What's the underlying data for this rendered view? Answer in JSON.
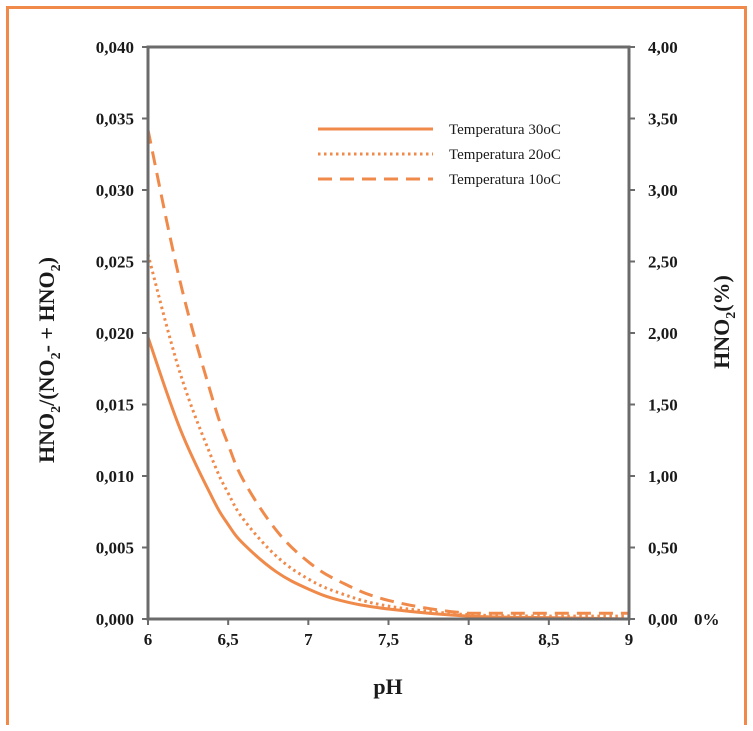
{
  "chart_data": {
    "type": "line",
    "xlabel": "pH",
    "ylabel": "HNO₂/(NO₂- + HNO₂)",
    "y2label": "HNO₂(%)",
    "y2_unit_label": "0%",
    "xlim": [
      6,
      9
    ],
    "ylim": [
      0,
      0.04
    ],
    "y2lim": [
      0,
      4
    ],
    "x_ticks": [
      "6",
      "6,5",
      "7",
      "7,5",
      "8",
      "8,5",
      "9"
    ],
    "y_ticks": [
      "0,000",
      "0,005",
      "0,010",
      "0,015",
      "0,020",
      "0,025",
      "0,030",
      "0,035",
      "0,040"
    ],
    "y2_ticks": [
      "0,00",
      "0,50",
      "1,00",
      "1,50",
      "2,00",
      "2,50",
      "3,00",
      "3,50",
      "4,00"
    ],
    "grid": false,
    "legend_position": "top-right",
    "x": [
      6.0,
      6.2,
      6.4,
      6.5,
      6.6,
      6.8,
      7.0,
      7.2,
      7.5,
      8.0,
      8.5,
      9.0
    ],
    "series": [
      {
        "name": "Temperatura 30oC",
        "style": "solid",
        "values": [
          0.0197,
          0.0133,
          0.0085,
          0.0066,
          0.0052,
          0.0033,
          0.0021,
          0.0013,
          0.0007,
          0.0002,
          0.0001,
          0.0
        ]
      },
      {
        "name": "Temperatura 20oC",
        "style": "dotted",
        "values": [
          0.0255,
          0.0172,
          0.0112,
          0.0088,
          0.0069,
          0.0044,
          0.0028,
          0.0018,
          0.0009,
          0.0003,
          0.0002,
          0.0002
        ]
      },
      {
        "name": "Temperatura 10oC",
        "style": "dashed",
        "values": [
          0.0342,
          0.0236,
          0.0155,
          0.0122,
          0.0096,
          0.0062,
          0.004,
          0.0026,
          0.0013,
          0.0004,
          0.0004,
          0.0004
        ]
      }
    ],
    "colors": {
      "series": "#f08a4b",
      "frame": "#f08a4b",
      "axes": "#6b6b6b"
    }
  }
}
